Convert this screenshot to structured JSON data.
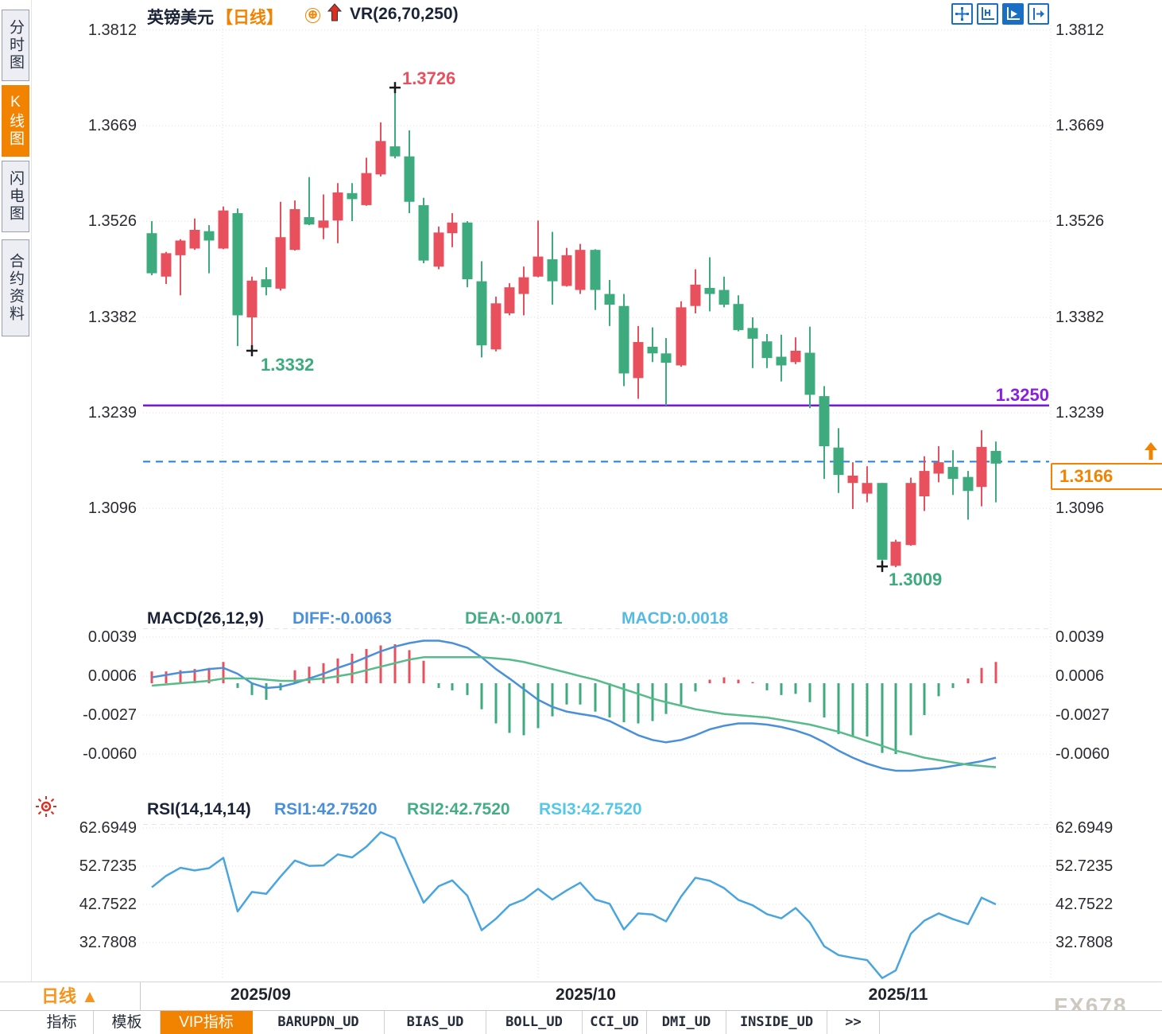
{
  "header": {
    "symbol": "英镑美元",
    "period_tag": "【日线】",
    "plus_icon": "⊕",
    "indicator_label": "VR(26,70,250)"
  },
  "sidebar": {
    "tabs": [
      {
        "label": "分时图",
        "active": false
      },
      {
        "label": "K线图",
        "active": true
      },
      {
        "label": "闪电图",
        "active": false
      },
      {
        "label": "合约资料",
        "active": false
      }
    ]
  },
  "toolbar": {
    "icons": [
      {
        "name": "crosshair-move-icon",
        "active": false
      },
      {
        "name": "axis-scale-icon",
        "active": false
      },
      {
        "name": "axis-play-icon",
        "active": true
      },
      {
        "name": "exit-panel-icon",
        "active": false
      }
    ]
  },
  "main_chart": {
    "left_axis": [
      "1.3812",
      "1.3669",
      "1.3526",
      "1.3382",
      "1.3239",
      "1.3096"
    ],
    "right_axis": [
      "1.3812",
      "1.3669",
      "1.3526",
      "1.3382",
      "1.3239",
      "1.3096"
    ],
    "annotations": {
      "high_label": "1.3726",
      "low1_label": "1.3332",
      "low2_label": "1.3009",
      "support_label": "1.3250",
      "last_price_label": "1.3166"
    }
  },
  "macd_panel": {
    "title": "MACD(26,12,9)",
    "diff_label": "DIFF:-0.0063",
    "dea_label": "DEA:-0.0071",
    "macd_label": "MACD:0.0018",
    "axis": [
      "0.0039",
      "0.0006",
      "-0.0027",
      "-0.0060"
    ]
  },
  "rsi_panel": {
    "title": "RSI(14,14,14)",
    "rsi1_label": "RSI1:42.7520",
    "rsi2_label": "RSI2:42.7520",
    "rsi3_label": "RSI3:42.7520",
    "axis": [
      "62.6949",
      "52.7235",
      "42.7522",
      "32.7808"
    ]
  },
  "footer": {
    "period_button": "日线 ▲",
    "more_tab": ">>",
    "tabs": [
      {
        "label": "指标",
        "mono": false,
        "active": false
      },
      {
        "label": "模板",
        "mono": false,
        "active": false
      },
      {
        "label": "VIP指标",
        "mono": false,
        "active": true
      },
      {
        "label": "BARUPDN_UD",
        "mono": true,
        "active": false
      },
      {
        "label": "BIAS_UD",
        "mono": true,
        "active": false
      },
      {
        "label": "BOLL_UD",
        "mono": true,
        "active": false
      },
      {
        "label": "CCI_UD",
        "mono": true,
        "active": false
      },
      {
        "label": "DMI_UD",
        "mono": true,
        "active": false
      },
      {
        "label": "INSIDE_UD",
        "mono": true,
        "active": false
      },
      {
        "label": ">>",
        "mono": true,
        "active": false
      }
    ],
    "watermark": "FX678"
  },
  "colors": {
    "up": "#e8505e",
    "down": "#3dab7d",
    "diff_line": "#4a90d9",
    "dea_line": "#57bb8a",
    "rsi_line": "#49a5dd",
    "support_line": "#7a16dd",
    "last_price_line": "#2080e8",
    "accent_orange": "#f28300",
    "grid": "#dcdce2"
  },
  "chart_data": [
    {
      "type": "candlestick",
      "title": "英镑美元 日线",
      "ylim": [
        1.295,
        1.386
      ],
      "y_ticks": [
        1.3812,
        1.3669,
        1.3526,
        1.3382,
        1.3239,
        1.3096
      ],
      "month_ticks": [
        {
          "label": "2025/09",
          "x": 328
        },
        {
          "label": "2025/10",
          "x": 737
        },
        {
          "label": "2025/11",
          "x": 1130
        }
      ],
      "v_gridlines": [
        280,
        677,
        1089,
        1322
      ],
      "support_line": 1.325,
      "last_price": 1.3166,
      "high_marker": {
        "x": 497,
        "price": 1.3726
      },
      "low_markers": [
        {
          "x": 317,
          "price": 1.3332
        },
        {
          "x": 1110,
          "price": 1.3009
        }
      ],
      "candles": [
        [
          191,
          1.3508,
          1.3526,
          1.3445,
          1.3448
        ],
        [
          209,
          1.3443,
          1.348,
          1.3432,
          1.3478
        ],
        [
          227,
          1.3475,
          1.3499,
          1.3415,
          1.3497
        ],
        [
          245,
          1.3485,
          1.353,
          1.3483,
          1.3513
        ],
        [
          263,
          1.3511,
          1.352,
          1.3448,
          1.3497
        ],
        [
          281,
          1.3485,
          1.3548,
          1.3484,
          1.3542
        ],
        [
          299,
          1.3538,
          1.3545,
          1.3339,
          1.3385
        ],
        [
          317,
          1.3382,
          1.3443,
          1.3332,
          1.3437
        ],
        [
          335,
          1.3439,
          1.3457,
          1.3415,
          1.3427
        ],
        [
          353,
          1.3425,
          1.3555,
          1.3422,
          1.3502
        ],
        [
          371,
          1.3483,
          1.3557,
          1.3482,
          1.3544
        ],
        [
          389,
          1.3532,
          1.3592,
          1.352,
          1.3521
        ],
        [
          407,
          1.3516,
          1.3566,
          1.3499,
          1.3527
        ],
        [
          425,
          1.3527,
          1.3583,
          1.3493,
          1.3569
        ],
        [
          443,
          1.3568,
          1.3583,
          1.3526,
          1.3559
        ],
        [
          461,
          1.355,
          1.3621,
          1.3549,
          1.3598
        ],
        [
          479,
          1.3596,
          1.3674,
          1.3593,
          1.3646
        ],
        [
          497,
          1.3638,
          1.3726,
          1.362,
          1.3623
        ],
        [
          515,
          1.3623,
          1.3662,
          1.3538,
          1.3555
        ],
        [
          533,
          1.355,
          1.3561,
          1.3463,
          1.3467
        ],
        [
          552,
          1.3458,
          1.3518,
          1.3454,
          1.3509
        ],
        [
          569,
          1.3508,
          1.3538,
          1.3487,
          1.3524
        ],
        [
          588,
          1.3524,
          1.3526,
          1.3427,
          1.3439
        ],
        [
          606,
          1.3436,
          1.3466,
          1.3322,
          1.334
        ],
        [
          624,
          1.3334,
          1.3413,
          1.3331,
          1.3403
        ],
        [
          641,
          1.3388,
          1.3433,
          1.3385,
          1.3427
        ],
        [
          659,
          1.3417,
          1.3458,
          1.3385,
          1.3442
        ],
        [
          677,
          1.3443,
          1.3527,
          1.3442,
          1.3473
        ],
        [
          695,
          1.3469,
          1.351,
          1.3401,
          1.3436
        ],
        [
          713,
          1.3429,
          1.3486,
          1.3428,
          1.3475
        ],
        [
          730,
          1.3423,
          1.3492,
          1.3417,
          1.3483
        ],
        [
          749,
          1.3483,
          1.3484,
          1.3393,
          1.3423
        ],
        [
          767,
          1.3417,
          1.3438,
          1.3369,
          1.3401
        ],
        [
          785,
          1.3399,
          1.3417,
          1.3279,
          1.3298
        ],
        [
          803,
          1.3291,
          1.3369,
          1.326,
          1.3345
        ],
        [
          821,
          1.3338,
          1.3367,
          1.3315,
          1.3328
        ],
        [
          838,
          1.3328,
          1.3351,
          1.325,
          1.3314
        ],
        [
          857,
          1.331,
          1.3406,
          1.3308,
          1.3397
        ],
        [
          875,
          1.3399,
          1.3454,
          1.3388,
          1.3431
        ],
        [
          893,
          1.3426,
          1.3472,
          1.3391,
          1.3417
        ],
        [
          911,
          1.3423,
          1.3443,
          1.3397,
          1.3401
        ],
        [
          929,
          1.3402,
          1.3415,
          1.3361,
          1.3363
        ],
        [
          947,
          1.3366,
          1.3382,
          1.3306,
          1.335
        ],
        [
          965,
          1.3346,
          1.3357,
          1.3306,
          1.3321
        ],
        [
          983,
          1.3323,
          1.3356,
          1.3286,
          1.331
        ],
        [
          1001,
          1.3315,
          1.3352,
          1.3312,
          1.3332
        ],
        [
          1019,
          1.3329,
          1.3368,
          1.3246,
          1.3266
        ],
        [
          1037,
          1.3264,
          1.3279,
          1.314,
          1.3189
        ],
        [
          1055,
          1.3187,
          1.3216,
          1.3119,
          1.3146
        ],
        [
          1073,
          1.3134,
          1.3165,
          1.3095,
          1.3145
        ],
        [
          1091,
          1.3118,
          1.3159,
          1.3105,
          1.3134
        ],
        [
          1110,
          1.3134,
          1.3134,
          1.3009,
          1.3019
        ],
        [
          1127,
          1.301,
          1.3049,
          1.3008,
          1.3046
        ],
        [
          1146,
          1.3041,
          1.3142,
          1.304,
          1.3134
        ],
        [
          1163,
          1.3114,
          1.3174,
          1.3092,
          1.3152
        ],
        [
          1181,
          1.3148,
          1.3189,
          1.3135,
          1.3165
        ],
        [
          1199,
          1.3158,
          1.3183,
          1.3116,
          1.314
        ],
        [
          1218,
          1.3143,
          1.3152,
          1.3079,
          1.3122
        ],
        [
          1235,
          1.3128,
          1.3213,
          1.3099,
          1.3188
        ],
        [
          1253,
          1.3182,
          1.3196,
          1.3105,
          1.3163
        ]
      ]
    },
    {
      "type": "macd",
      "title": "MACD(26,12,9)",
      "y_ticks": [
        0.0039,
        0.0006,
        -0.0027,
        -0.006
      ],
      "latest": {
        "diff": -0.0063,
        "dea": -0.0071,
        "macd": 0.0018
      },
      "histogram": [
        0.001,
        0.001,
        0.0011,
        0.0012,
        0.0013,
        0.0018,
        -0.0004,
        -0.001,
        -0.0014,
        -0.0006,
        0.0011,
        0.0014,
        0.0017,
        0.0021,
        0.0025,
        0.0029,
        0.0032,
        0.0033,
        0.0028,
        0.0019,
        -0.0004,
        -0.0006,
        -0.001,
        -0.0022,
        -0.0034,
        -0.0042,
        -0.0044,
        -0.0038,
        -0.0028,
        -0.0018,
        -0.0018,
        -0.0024,
        -0.0029,
        -0.0033,
        -0.0034,
        -0.0032,
        -0.0026,
        -0.0018,
        -0.0007,
        0.0003,
        0.0005,
        0.0003,
        0.0001,
        -0.0006,
        -0.001,
        -0.0009,
        -0.0016,
        -0.0029,
        -0.0043,
        -0.0045,
        -0.0045,
        -0.0059,
        -0.006,
        -0.0044,
        -0.0027,
        -0.0011,
        -0.0004,
        0.0004,
        0.0013,
        0.0018
      ],
      "diff": [
        0.0005,
        0.0007,
        0.0009,
        0.001,
        0.0012,
        0.0013,
        0.0008,
        0.0,
        -0.0004,
        -0.0003,
        0.0,
        0.0004,
        0.0008,
        0.0013,
        0.0017,
        0.0022,
        0.0027,
        0.0031,
        0.0034,
        0.0036,
        0.0036,
        0.0034,
        0.003,
        0.0022,
        0.0012,
        0.0004,
        -0.0005,
        -0.0014,
        -0.002,
        -0.0024,
        -0.0026,
        -0.0028,
        -0.0032,
        -0.0038,
        -0.0044,
        -0.0048,
        -0.005,
        -0.0048,
        -0.0044,
        -0.0039,
        -0.0036,
        -0.0034,
        -0.0034,
        -0.0035,
        -0.0037,
        -0.004,
        -0.0044,
        -0.005,
        -0.0057,
        -0.0063,
        -0.0068,
        -0.0072,
        -0.0074,
        -0.0074,
        -0.0073,
        -0.0072,
        -0.007,
        -0.0068,
        -0.0066,
        -0.0063
      ],
      "dea": [
        -0.0002,
        -0.0001,
        0.0,
        0.0001,
        0.0002,
        0.0004,
        0.0004,
        0.0004,
        0.0003,
        0.0002,
        0.0002,
        0.0003,
        0.0004,
        0.0006,
        0.0008,
        0.0011,
        0.0014,
        0.0017,
        0.002,
        0.0022,
        0.0022,
        0.0022,
        0.0022,
        0.0022,
        0.0021,
        0.002,
        0.0018,
        0.0015,
        0.0012,
        0.0009,
        0.0006,
        0.0003,
        -0.0001,
        -0.0005,
        -0.0009,
        -0.0013,
        -0.0016,
        -0.0019,
        -0.0022,
        -0.0024,
        -0.0026,
        -0.0027,
        -0.0028,
        -0.0029,
        -0.0031,
        -0.0033,
        -0.0035,
        -0.0038,
        -0.0041,
        -0.0045,
        -0.0049,
        -0.0053,
        -0.0057,
        -0.006,
        -0.0063,
        -0.0065,
        -0.0067,
        -0.0069,
        -0.007,
        -0.0071
      ]
    },
    {
      "type": "line",
      "title": "RSI(14,14,14)",
      "y_ticks": [
        62.6949,
        52.7235,
        42.7522,
        32.7808
      ],
      "latest": {
        "rsi1": 42.752,
        "rsi2": 42.752,
        "rsi3": 42.752
      },
      "values": [
        47.2,
        50.2,
        52.3,
        51.6,
        52.2,
        54.9,
        40.9,
        46.0,
        45.5,
        50.0,
        54.2,
        52.8,
        52.9,
        55.8,
        55.0,
        57.8,
        61.6,
        60.0,
        51.5,
        43.2,
        47.5,
        49.0,
        45.0,
        36.0,
        39.0,
        42.5,
        44.0,
        46.8,
        44.0,
        46.4,
        48.4,
        44.0,
        42.9,
        36.2,
        40.4,
        40.1,
        38.3,
        44.8,
        49.7,
        48.9,
        47.0,
        43.9,
        42.5,
        40.2,
        39.1,
        41.8,
        38.0,
        31.8,
        29.5,
        28.8,
        28.2,
        23.5,
        25.5,
        35.1,
        38.5,
        40.4,
        38.9,
        37.6,
        44.5,
        42.75
      ]
    }
  ]
}
